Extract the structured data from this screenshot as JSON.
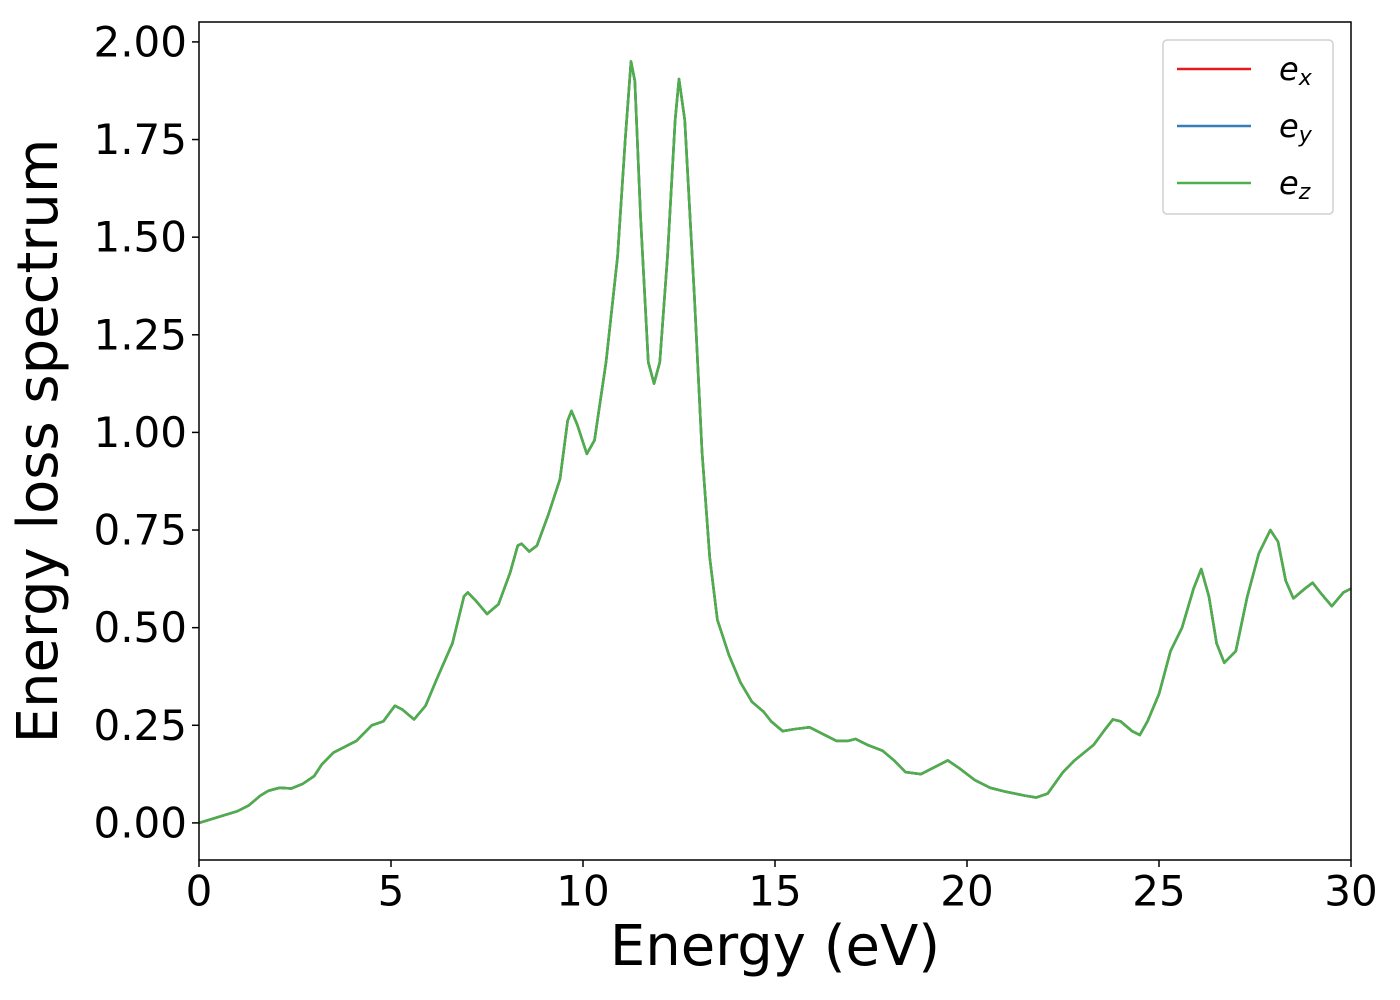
{
  "chart_data": {
    "type": "line",
    "xlabel": "Energy (eV)",
    "ylabel": "Energy loss spectrum",
    "x": [
      0,
      0.5,
      1.0,
      1.3,
      1.6,
      1.8,
      2.1,
      2.4,
      2.7,
      3.0,
      3.2,
      3.5,
      3.8,
      4.1,
      4.5,
      4.8,
      5.1,
      5.3,
      5.6,
      5.9,
      6.2,
      6.6,
      6.9,
      7.0,
      7.2,
      7.5,
      7.8,
      8.1,
      8.3,
      8.4,
      8.6,
      8.8,
      9.1,
      9.4,
      9.6,
      9.7,
      9.85,
      10.1,
      10.3,
      10.6,
      10.9,
      11.1,
      11.25,
      11.35,
      11.5,
      11.7,
      11.85,
      12.0,
      12.2,
      12.4,
      12.5,
      12.65,
      12.9,
      13.1,
      13.3,
      13.5,
      13.8,
      14.1,
      14.4,
      14.7,
      14.9,
      15.2,
      15.5,
      15.9,
      16.2,
      16.6,
      16.9,
      17.1,
      17.4,
      17.8,
      18.1,
      18.4,
      18.8,
      19.1,
      19.5,
      19.8,
      20.2,
      20.6,
      21.0,
      21.5,
      21.8,
      22.1,
      22.5,
      22.8,
      23.3,
      23.6,
      23.8,
      24.0,
      24.3,
      24.5,
      24.7,
      25.0,
      25.3,
      25.6,
      25.9,
      26.1,
      26.3,
      26.5,
      26.7,
      27.0,
      27.3,
      27.6,
      27.9,
      28.1,
      28.3,
      28.5,
      28.8,
      29.0,
      29.2,
      29.5,
      29.8,
      30.0
    ],
    "series": [
      {
        "name": "ex",
        "color": "#e41a1c",
        "values": [
          0,
          0.015,
          0.03,
          0.045,
          0.07,
          0.082,
          0.09,
          0.088,
          0.1,
          0.12,
          0.15,
          0.18,
          0.195,
          0.21,
          0.25,
          0.26,
          0.3,
          0.29,
          0.265,
          0.3,
          0.37,
          0.46,
          0.58,
          0.59,
          0.57,
          0.535,
          0.56,
          0.64,
          0.71,
          0.715,
          0.695,
          0.71,
          0.79,
          0.88,
          1.03,
          1.055,
          1.02,
          0.945,
          0.98,
          1.18,
          1.45,
          1.75,
          1.95,
          1.9,
          1.55,
          1.18,
          1.125,
          1.18,
          1.45,
          1.8,
          1.905,
          1.8,
          1.35,
          0.95,
          0.68,
          0.52,
          0.43,
          0.36,
          0.31,
          0.285,
          0.26,
          0.235,
          0.24,
          0.245,
          0.23,
          0.21,
          0.21,
          0.215,
          0.2,
          0.185,
          0.16,
          0.13,
          0.125,
          0.14,
          0.16,
          0.14,
          0.11,
          0.09,
          0.08,
          0.07,
          0.065,
          0.075,
          0.13,
          0.16,
          0.2,
          0.24,
          0.265,
          0.26,
          0.235,
          0.225,
          0.26,
          0.33,
          0.44,
          0.5,
          0.6,
          0.65,
          0.58,
          0.46,
          0.41,
          0.44,
          0.58,
          0.69,
          0.75,
          0.72,
          0.62,
          0.575,
          0.6,
          0.615,
          0.59,
          0.555,
          0.59,
          0.6
        ]
      },
      {
        "name": "ey",
        "color": "#377eb8",
        "values": [
          0,
          0.015,
          0.03,
          0.045,
          0.07,
          0.082,
          0.09,
          0.088,
          0.1,
          0.12,
          0.15,
          0.18,
          0.195,
          0.21,
          0.25,
          0.26,
          0.3,
          0.29,
          0.265,
          0.3,
          0.37,
          0.46,
          0.58,
          0.59,
          0.57,
          0.535,
          0.56,
          0.64,
          0.71,
          0.715,
          0.695,
          0.71,
          0.79,
          0.88,
          1.03,
          1.055,
          1.02,
          0.945,
          0.98,
          1.18,
          1.45,
          1.75,
          1.95,
          1.9,
          1.55,
          1.18,
          1.125,
          1.18,
          1.45,
          1.8,
          1.905,
          1.8,
          1.35,
          0.95,
          0.68,
          0.52,
          0.43,
          0.36,
          0.31,
          0.285,
          0.26,
          0.235,
          0.24,
          0.245,
          0.23,
          0.21,
          0.21,
          0.215,
          0.2,
          0.185,
          0.16,
          0.13,
          0.125,
          0.14,
          0.16,
          0.14,
          0.11,
          0.09,
          0.08,
          0.07,
          0.065,
          0.075,
          0.13,
          0.16,
          0.2,
          0.24,
          0.265,
          0.26,
          0.235,
          0.225,
          0.26,
          0.33,
          0.44,
          0.5,
          0.6,
          0.65,
          0.58,
          0.46,
          0.41,
          0.44,
          0.58,
          0.69,
          0.75,
          0.72,
          0.62,
          0.575,
          0.6,
          0.615,
          0.59,
          0.555,
          0.59,
          0.6
        ]
      },
      {
        "name": "ez",
        "color": "#4daf4a",
        "values": [
          0,
          0.015,
          0.03,
          0.045,
          0.07,
          0.082,
          0.09,
          0.088,
          0.1,
          0.12,
          0.15,
          0.18,
          0.195,
          0.21,
          0.25,
          0.26,
          0.3,
          0.29,
          0.265,
          0.3,
          0.37,
          0.46,
          0.58,
          0.59,
          0.57,
          0.535,
          0.56,
          0.64,
          0.71,
          0.715,
          0.695,
          0.71,
          0.79,
          0.88,
          1.03,
          1.055,
          1.02,
          0.945,
          0.98,
          1.18,
          1.45,
          1.75,
          1.95,
          1.9,
          1.55,
          1.18,
          1.125,
          1.18,
          1.45,
          1.8,
          1.905,
          1.8,
          1.35,
          0.95,
          0.68,
          0.52,
          0.43,
          0.36,
          0.31,
          0.285,
          0.26,
          0.235,
          0.24,
          0.245,
          0.23,
          0.21,
          0.21,
          0.215,
          0.2,
          0.185,
          0.16,
          0.13,
          0.125,
          0.14,
          0.16,
          0.14,
          0.11,
          0.09,
          0.08,
          0.07,
          0.065,
          0.075,
          0.13,
          0.16,
          0.2,
          0.24,
          0.265,
          0.26,
          0.235,
          0.225,
          0.26,
          0.33,
          0.44,
          0.5,
          0.6,
          0.65,
          0.58,
          0.46,
          0.41,
          0.44,
          0.58,
          0.69,
          0.75,
          0.72,
          0.62,
          0.575,
          0.6,
          0.615,
          0.59,
          0.555,
          0.59,
          0.6
        ]
      }
    ],
    "xlim": [
      0,
      30
    ],
    "xticks": [
      0,
      5,
      10,
      15,
      20,
      25,
      30
    ],
    "ylim": [
      -0.095,
      2.051
    ],
    "yticks": [
      {
        "value": 0,
        "label": "0.00"
      },
      {
        "value": 0.25,
        "label": "0.25"
      },
      {
        "value": 0.5,
        "label": "0.50"
      },
      {
        "value": 0.75,
        "label": "0.75"
      },
      {
        "value": 1,
        "label": "1.00"
      },
      {
        "value": 1.25,
        "label": "1.25"
      },
      {
        "value": 1.5,
        "label": "1.50"
      },
      {
        "value": 1.75,
        "label": "1.75"
      },
      {
        "value": 2,
        "label": "2.00"
      }
    ],
    "grid": false,
    "legend": "upper right"
  }
}
